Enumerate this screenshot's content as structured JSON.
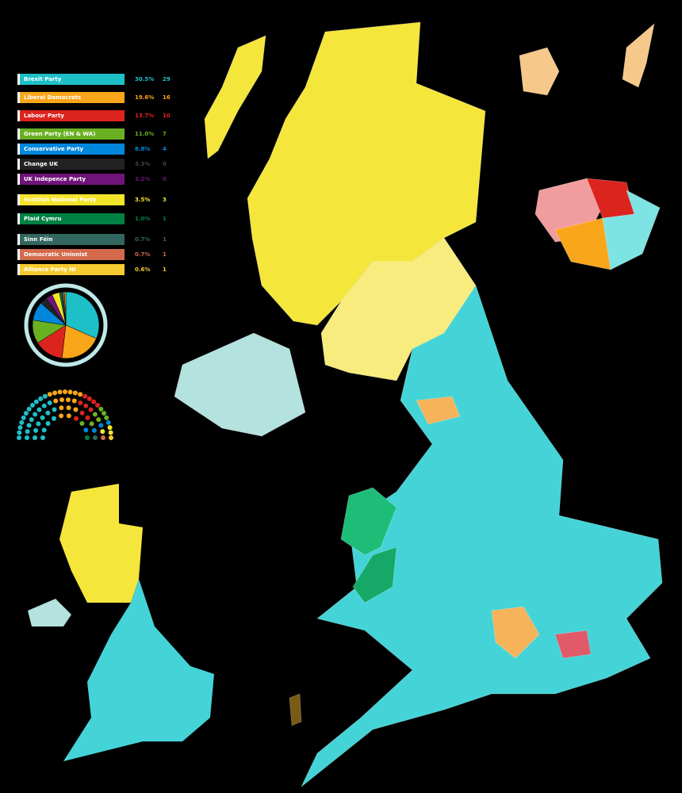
{
  "legend": {
    "parties": [
      {
        "name": "Brexit Party",
        "share": "30.5%",
        "seats": 29,
        "color": "#1ec0c8"
      },
      {
        "name": "Liberal Democrats",
        "share": "19.6%",
        "seats": 16,
        "color": "#faa61a"
      },
      {
        "name": "Labour Party",
        "share": "13.7%",
        "seats": 10,
        "color": "#dc241f"
      },
      {
        "name": "Green Party (EN & WA)",
        "share": "11.0%",
        "seats": 7,
        "color": "#6ab023"
      },
      {
        "name": "Conservative Party",
        "share": "8.8%",
        "seats": 4,
        "color": "#0087dc"
      },
      {
        "name": "Change UK",
        "share": "3.3%",
        "seats": 0,
        "color": "#222222"
      },
      {
        "name": "UK Indepence Party",
        "share": "3.2%",
        "seats": 0,
        "color": "#70147a"
      },
      {
        "name": "Scottish National Party",
        "share": "3.5%",
        "seats": 3,
        "color": "#f5e52a"
      },
      {
        "name": "Plaid Cymru",
        "share": "1.0%",
        "seats": 1,
        "color": "#008142"
      },
      {
        "name": "Sinn Féin",
        "share": "0.7%",
        "seats": 1,
        "color": "#326760"
      },
      {
        "name": "Democratic Unionist",
        "share": "0.7%",
        "seats": 1,
        "color": "#d46a4c"
      },
      {
        "name": "Alliance Party NI",
        "share": "0.6%",
        "seats": 1,
        "color": "#f6cb2f"
      }
    ]
  }
}
